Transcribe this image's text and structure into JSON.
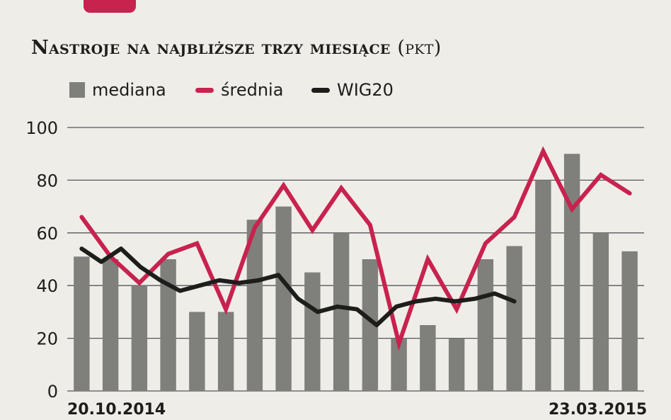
{
  "header": {
    "title_main": "Nastroje na najbliższe trzy miesiące",
    "title_unit": "(pkt)"
  },
  "colors": {
    "median": "#7f807b",
    "mean": "#c8224f",
    "wig20": "#1d1d1b",
    "grid": "#55575a"
  },
  "chart_data": {
    "type": "bar",
    "title": "Nastroje na najbliższe trzy miesiące (pkt)",
    "x_start_label": "20.10.2014",
    "x_end_label": "23.03.2015",
    "ylim": [
      0,
      100
    ],
    "yticks": [
      0,
      20,
      40,
      60,
      80,
      100
    ],
    "grid": true,
    "legend_position": "top",
    "series": [
      {
        "name": "mediana",
        "kind": "bar",
        "values": [
          51,
          50,
          40,
          50,
          30,
          30,
          65,
          70,
          45,
          60,
          50,
          20,
          25,
          20,
          50,
          55,
          80,
          90,
          60,
          53
        ]
      },
      {
        "name": "średnia",
        "kind": "line",
        "values": [
          66,
          51,
          41,
          52,
          56,
          31,
          62,
          78,
          61,
          77,
          63,
          18,
          50,
          31,
          56,
          66,
          91,
          69,
          82,
          75
        ]
      },
      {
        "name": "WIG20",
        "kind": "line",
        "values": [
          54,
          49,
          54,
          47,
          42,
          38,
          40,
          42,
          41,
          42,
          44,
          35,
          30,
          32,
          31,
          25,
          32,
          34,
          35,
          34,
          35,
          37,
          34
        ]
      }
    ]
  }
}
